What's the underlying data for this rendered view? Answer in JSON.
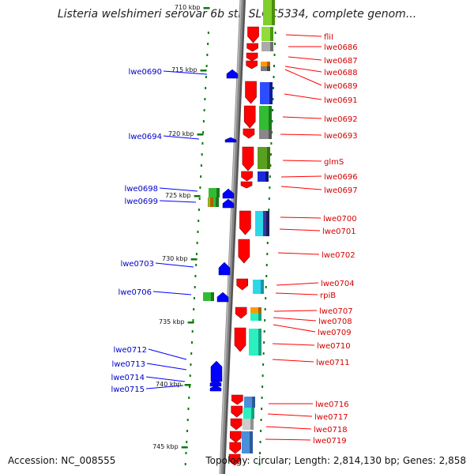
{
  "title": "Listeria welshimeri serovar 6b str. SLCC5334, complete genom...",
  "accession": "Accession: NC_008555",
  "topology": "Topology: circular; Length: 2,814,130 bp; Genes: 2,858",
  "colors": {
    "forward": "#ff0000",
    "reverse": "#0000ff",
    "backbone": "#888888",
    "tick": "#0a7a0a"
  },
  "kbp_labels": [
    "710 kbp",
    "715 kbp",
    "720 kbp",
    "725 kbp",
    "730 kbp",
    "735 kbp",
    "740 kbp",
    "745 kbp"
  ],
  "right_genes": [
    "fliI",
    "lwe0686",
    "lwe0687",
    "lwe0688",
    "lwe0689",
    "lwe0691",
    "lwe0692",
    "lwe0693",
    "glmS",
    "lwe0696",
    "lwe0697",
    "lwe0700",
    "lwe0701",
    "lwe0702",
    "lwe0704",
    "rpiB",
    "lwe0707",
    "lwe0708",
    "lwe0709",
    "lwe0710",
    "lwe0711",
    "lwe0716",
    "lwe0717",
    "lwe0718",
    "lwe0719"
  ],
  "left_genes": [
    "lwe0690",
    "lwe0694",
    "lwe0698",
    "lwe0699",
    "lwe0703",
    "lwe0706",
    "lwe0712",
    "lwe0713",
    "lwe0714",
    "lwe0715"
  ]
}
